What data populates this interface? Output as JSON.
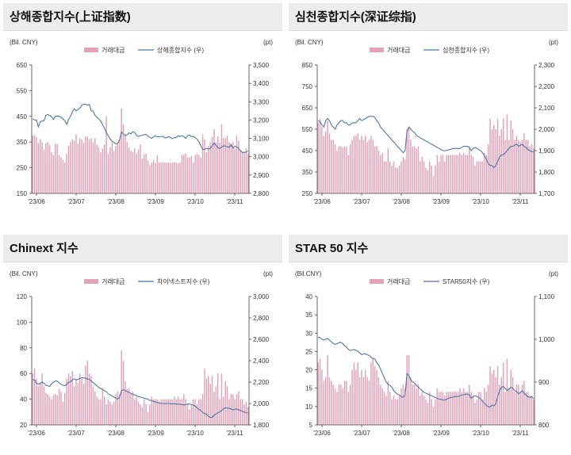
{
  "colors": {
    "bar": "#e2a3b8",
    "line": "#4a78a8",
    "axis": "#444444",
    "titlebar": "#ececec"
  },
  "chart_data": [
    {
      "type": "bar",
      "panel_title": "상해종합지수(上证指数)",
      "left_unit": "(Bil. CNY)",
      "right_unit": "(pt)",
      "legend": {
        "bar": "거래대금",
        "line": "상해종합지수 (우)"
      },
      "x_labels": [
        "'23/06",
        "'23/07",
        "'23/08",
        "'23/09",
        "'23/10",
        "'23/11"
      ],
      "left_ticks": [
        150,
        250,
        350,
        450,
        550,
        650
      ],
      "right_ticks": [
        "2,800",
        "2,900",
        "3,000",
        "3,100",
        "3,200",
        "3,300",
        "3,400",
        "3,500"
      ],
      "ylim_left": [
        150,
        650
      ],
      "ylim_right": [
        2800,
        3500
      ],
      "series": [
        {
          "name": "거래대금",
          "kind": "bar",
          "axis": "left",
          "values": [
            375,
            378,
            370,
            345,
            362,
            350,
            320,
            345,
            350,
            340,
            310,
            300,
            345,
            342,
            300,
            290,
            280,
            270,
            305,
            335,
            350,
            360,
            355,
            380,
            345,
            365,
            360,
            348,
            372,
            370,
            360,
            365,
            350,
            365,
            340,
            330,
            310,
            325,
            340,
            450,
            305,
            330,
            350,
            315,
            335,
            345,
            360,
            482,
            420,
            380,
            350,
            330,
            316,
            312,
            325,
            305,
            320,
            340,
            285,
            302,
            305,
            280,
            260,
            270,
            280,
            268,
            298,
            270,
            270,
            272,
            270,
            270,
            270,
            270,
            270,
            272,
            270,
            268,
            270,
            300,
            300,
            305,
            290,
            290,
            295,
            270,
            300,
            305,
            300,
            290,
            380,
            360,
            310,
            335,
            350,
            370,
            400,
            350,
            372,
            348,
            420,
            365,
            365,
            375,
            350,
            345,
            350,
            325,
            375,
            355,
            320,
            308,
            310,
            326,
            305
          ]
        },
        {
          "name": "상해종합지수",
          "kind": "line",
          "axis": "right",
          "values": [
            3206,
            3200,
            3201,
            3163,
            3190,
            3195,
            3197,
            3225,
            3230,
            3225,
            3218,
            3204,
            3220,
            3222,
            3221,
            3216,
            3206,
            3197,
            3176,
            3204,
            3220,
            3244,
            3262,
            3250,
            3258,
            3265,
            3281,
            3286,
            3286,
            3281,
            3285,
            3250,
            3249,
            3226,
            3215,
            3206,
            3195,
            3174,
            3155,
            3131,
            3115,
            3096,
            3085,
            3079,
            3069,
            3073,
            3092,
            3136,
            3125,
            3115,
            3120,
            3130,
            3125,
            3136,
            3133,
            3116,
            3111,
            3115,
            3117,
            3120,
            3122,
            3112,
            3106,
            3100,
            3110,
            3113,
            3108,
            3110,
            3110,
            3111,
            3103,
            3105,
            3109,
            3104,
            3098,
            3105,
            3105,
            3115,
            3110,
            3115,
            3110,
            3100,
            3115,
            3118,
            3110,
            3111,
            3104,
            3095,
            3082,
            3060,
            3039,
            3040,
            3046,
            3041,
            3046,
            3059,
            3075,
            3062,
            3050,
            3045,
            3052,
            3060,
            3057,
            3055,
            3051,
            3066,
            3047,
            3057,
            3054,
            3045,
            3032,
            3023,
            3024,
            3025,
            3032
          ]
        }
      ]
    },
    {
      "type": "bar",
      "panel_title": "심천종합지수(深证综指)",
      "left_unit": "(Bil. CNY)",
      "right_unit": "(pt)",
      "legend": {
        "bar": "거래대금",
        "line": "심천종합지수 (우)"
      },
      "x_labels": [
        "'23/06",
        "'23/07",
        "'23/08",
        "'23/09",
        "'23/10",
        "'23/11"
      ],
      "left_ticks": [
        250,
        350,
        450,
        550,
        650,
        750,
        850
      ],
      "right_ticks": [
        "1,700",
        "1,800",
        "1,900",
        "2,000",
        "2,100",
        "2,200",
        "2,300"
      ],
      "ylim_left": [
        250,
        850
      ],
      "ylim_right": [
        1700,
        2300
      ],
      "series": [
        {
          "name": "거래대금",
          "kind": "bar",
          "axis": "left",
          "values": [
            580,
            600,
            560,
            520,
            540,
            590,
            530,
            500,
            500,
            480,
            450,
            470,
            470,
            465,
            470,
            470,
            430,
            480,
            500,
            520,
            520,
            530,
            500,
            520,
            500,
            520,
            490,
            500,
            520,
            500,
            470,
            470,
            450,
            430,
            440,
            400,
            400,
            460,
            400,
            380,
            400,
            370,
            370,
            380,
            400,
            420,
            410,
            550,
            560,
            500,
            470,
            470,
            460,
            470,
            400,
            420,
            400,
            370,
            360,
            400,
            380,
            330,
            380,
            430,
            400,
            430,
            430,
            400,
            430,
            430,
            430,
            430,
            430,
            430,
            430,
            440,
            430,
            440,
            430,
            430,
            470,
            430,
            420,
            380,
            400,
            400,
            400,
            400,
            440,
            430,
            480,
            600,
            550,
            570,
            550,
            600,
            520,
            550,
            600,
            500,
            620,
            500,
            590,
            550,
            500,
            520,
            500,
            490,
            500,
            530,
            500,
            500,
            470,
            480,
            460
          ]
        },
        {
          "name": "심천종합지수",
          "kind": "line",
          "axis": "right",
          "values": [
            2040,
            2035,
            2020,
            2010,
            2040,
            2050,
            2040,
            2020,
            2010,
            2000,
            2020,
            2030,
            2040,
            2040,
            2030,
            2030,
            2020,
            2020,
            2030,
            2030,
            2030,
            2040,
            2050,
            2040,
            2045,
            2050,
            2055,
            2060,
            2060,
            2060,
            2055,
            2040,
            2030,
            2010,
            2000,
            1990,
            1980,
            1970,
            1960,
            1950,
            1940,
            1930,
            1920,
            1910,
            1900,
            1890,
            1900,
            1990,
            2010,
            2000,
            1990,
            1985,
            1970,
            1965,
            1960,
            1955,
            1950,
            1945,
            1940,
            1935,
            1930,
            1925,
            1920,
            1915,
            1910,
            1905,
            1900,
            1900,
            1900,
            1905,
            1905,
            1910,
            1910,
            1910,
            1910,
            1910,
            1915,
            1920,
            1920,
            1920,
            1915,
            1900,
            1910,
            1915,
            1910,
            1905,
            1900,
            1890,
            1875,
            1860,
            1840,
            1830,
            1830,
            1820,
            1830,
            1850,
            1870,
            1880,
            1880,
            1890,
            1900,
            1910,
            1920,
            1920,
            1925,
            1930,
            1920,
            1925,
            1930,
            1920,
            1915,
            1905,
            1900,
            1895,
            1895
          ]
        }
      ]
    },
    {
      "type": "bar",
      "panel_title": "Chinext 지수",
      "left_unit": "(Bil. CNY)",
      "right_unit": "(pt)",
      "legend": {
        "bar": "거래대금",
        "line": "차이넥스트지수 (우)"
      },
      "x_labels": [
        "'23/06",
        "'23/07",
        "'23/08",
        "'23/09",
        "'23/10",
        "'23/11"
      ],
      "left_ticks": [
        20,
        40,
        60,
        80,
        100,
        120
      ],
      "right_ticks": [
        "1,800",
        "2,000",
        "2,200",
        "2,400",
        "2,600",
        "2,800",
        "3,000"
      ],
      "ylim_left": [
        20,
        120
      ],
      "ylim_right": [
        1800,
        3000
      ],
      "series": [
        {
          "name": "거래대금",
          "kind": "bar",
          "axis": "left",
          "values": [
            60,
            64,
            56,
            50,
            53,
            60,
            50,
            45,
            44,
            42,
            40,
            43,
            44,
            43,
            48,
            46,
            38,
            45,
            56,
            60,
            58,
            62,
            50,
            56,
            53,
            60,
            56,
            52,
            66,
            70,
            60,
            58,
            50,
            46,
            42,
            40,
            40,
            48,
            42,
            36,
            40,
            38,
            36,
            38,
            44,
            46,
            44,
            78,
            70,
            54,
            48,
            48,
            44,
            46,
            40,
            42,
            38,
            36,
            34,
            40,
            36,
            30,
            36,
            42,
            40,
            40,
            40,
            38,
            40,
            40,
            40,
            40,
            40,
            40,
            40,
            42,
            40,
            42,
            40,
            40,
            44,
            40,
            36,
            32,
            36,
            40,
            40,
            36,
            40,
            40,
            44,
            64,
            56,
            58,
            52,
            58,
            46,
            50,
            60,
            40,
            60,
            42,
            54,
            50,
            40,
            44,
            44,
            40,
            44,
            46,
            40,
            40,
            36,
            38,
            34
          ]
        },
        {
          "name": "차이넥스트지수",
          "kind": "line",
          "axis": "right",
          "values": [
            2220,
            2220,
            2190,
            2180,
            2190,
            2200,
            2190,
            2170,
            2165,
            2160,
            2185,
            2200,
            2210,
            2210,
            2190,
            2180,
            2170,
            2165,
            2180,
            2200,
            2200,
            2220,
            2230,
            2220,
            2225,
            2235,
            2240,
            2240,
            2235,
            2230,
            2225,
            2210,
            2195,
            2180,
            2165,
            2150,
            2140,
            2130,
            2120,
            2110,
            2090,
            2080,
            2070,
            2060,
            2050,
            2040,
            2060,
            2120,
            2130,
            2120,
            2110,
            2105,
            2095,
            2085,
            2080,
            2075,
            2065,
            2060,
            2055,
            2050,
            2045,
            2040,
            2030,
            2025,
            2020,
            2015,
            2010,
            2005,
            2000,
            2000,
            1998,
            2000,
            2000,
            1998,
            1995,
            1998,
            1995,
            1995,
            1992,
            1990,
            1985,
            1990,
            1995,
            1995,
            1990,
            1985,
            1975,
            1960,
            1945,
            1935,
            1915,
            1905,
            1900,
            1880,
            1870,
            1870,
            1890,
            1900,
            1915,
            1920,
            1935,
            1950,
            1960,
            1955,
            1955,
            1950,
            1940,
            1945,
            1950,
            1940,
            1935,
            1925,
            1920,
            1915,
            1910
          ]
        }
      ]
    },
    {
      "type": "bar",
      "panel_title": "STAR 50 지수",
      "left_unit": "(Bil.CNY)",
      "right_unit": "(pt)",
      "legend": {
        "bar": "거래대금",
        "line": "STAR50지수 (우)"
      },
      "x_labels": [
        "'23/06",
        "'23/07",
        "'23/08",
        "'23/09",
        "'23/10",
        "'23/11"
      ],
      "left_ticks": [
        5,
        10,
        15,
        20,
        25,
        30,
        35,
        40
      ],
      "right_ticks": [
        "800",
        "900",
        "1,000",
        "1,100"
      ],
      "ylim_left": [
        5,
        40
      ],
      "ylim_right": [
        800,
        1100
      ],
      "series": [
        {
          "name": "거래대금",
          "kind": "bar",
          "axis": "left",
          "values": [
            22,
            23,
            20,
            17,
            18,
            24,
            18,
            17,
            16,
            15,
            14,
            16,
            16,
            15,
            17,
            17,
            14,
            16,
            20,
            22,
            20,
            22,
            18,
            20,
            18,
            20,
            18,
            17,
            22,
            23,
            21,
            20,
            18,
            16,
            15,
            14,
            13,
            17,
            14,
            12,
            13,
            12,
            12,
            13,
            15,
            16,
            15,
            24,
            24,
            18,
            16,
            16,
            15,
            16,
            13,
            14,
            13,
            12,
            11,
            14,
            12,
            10,
            12,
            15,
            14,
            14,
            14,
            13,
            14,
            14,
            14,
            14,
            14,
            14,
            14,
            15,
            14,
            15,
            14,
            14,
            16,
            14,
            13,
            11,
            12,
            14,
            14,
            12,
            15,
            14,
            16,
            21,
            19,
            20,
            18,
            21,
            16,
            18,
            22,
            14,
            23,
            15,
            20,
            18,
            14,
            16,
            16,
            14,
            16,
            17,
            14,
            14,
            13,
            13,
            12
          ]
        },
        {
          "name": "STAR50지수",
          "kind": "line",
          "axis": "right",
          "values": [
            1005,
            1004,
            1000,
            998,
            1000,
            1002,
            998,
            994,
            990,
            988,
            990,
            992,
            993,
            990,
            985,
            982,
            976,
            974,
            975,
            976,
            974,
            972,
            968,
            964,
            966,
            966,
            964,
            962,
            958,
            955,
            954,
            945,
            940,
            930,
            920,
            910,
            900,
            895,
            892,
            888,
            880,
            875,
            872,
            870,
            866,
            864,
            870,
            920,
            915,
            905,
            900,
            898,
            892,
            888,
            884,
            880,
            876,
            874,
            872,
            870,
            868,
            866,
            864,
            862,
            860,
            860,
            858,
            858,
            860,
            862,
            864,
            864,
            866,
            866,
            866,
            868,
            870,
            870,
            872,
            872,
            870,
            862,
            866,
            868,
            866,
            864,
            860,
            855,
            850,
            846,
            842,
            842,
            846,
            844,
            850,
            866,
            880,
            888,
            890,
            885,
            880,
            884,
            888,
            886,
            880,
            878,
            872,
            876,
            880,
            874,
            870,
            866,
            864,
            866,
            862
          ]
        }
      ]
    }
  ]
}
